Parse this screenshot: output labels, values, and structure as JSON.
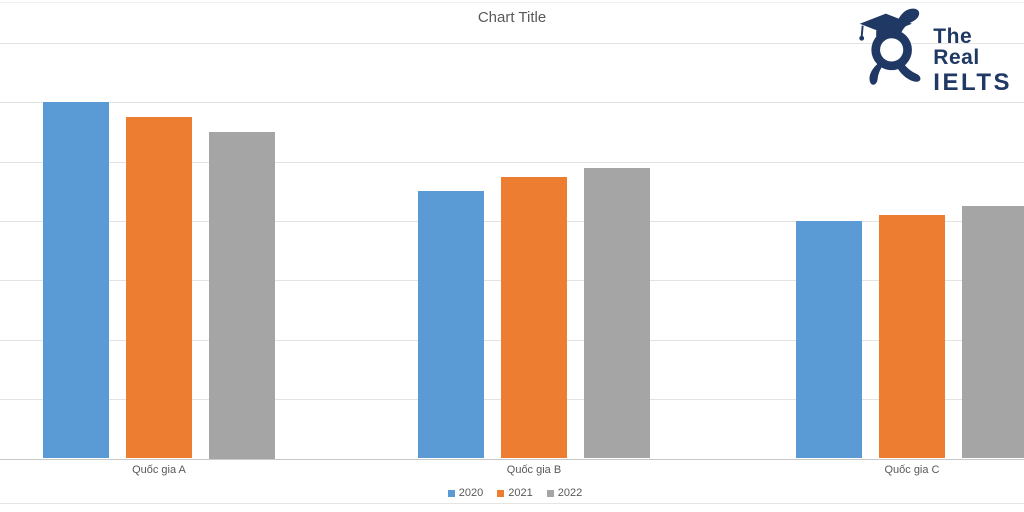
{
  "chart_data": {
    "type": "bar",
    "title": "Chart Title",
    "categories": [
      "Quốc gia A",
      "Quốc gia B",
      "Quốc gia C"
    ],
    "series": [
      {
        "name": "2020",
        "color": "#5B9BD5",
        "values": [
          60,
          45,
          40
        ]
      },
      {
        "name": "2021",
        "color": "#ED7D31",
        "values": [
          57.5,
          47.5,
          41
        ]
      },
      {
        "name": "2022",
        "color": "#A5A5A5",
        "values": [
          55,
          49,
          42.5
        ]
      }
    ],
    "xlabel": "",
    "ylabel": "",
    "ylim": [
      0,
      70
    ],
    "gridline_step": 10,
    "grid": "horizontal",
    "y_axis_tick_labels_visible": false,
    "legend_position": "bottom-center"
  },
  "logo": {
    "line1": "The Real",
    "line2": "IELTS",
    "color": "#1F3864",
    "mascot": "rabbit-graduate-mascot"
  },
  "colors": {
    "background": "#FFFFFF",
    "title_text": "#595959",
    "axis_text": "#595959",
    "gridline": "#E3E3E3",
    "axis_line": "#C9C9C9",
    "top_border": "#F1F1F1",
    "bottom_separator": "#E5E5E5"
  }
}
